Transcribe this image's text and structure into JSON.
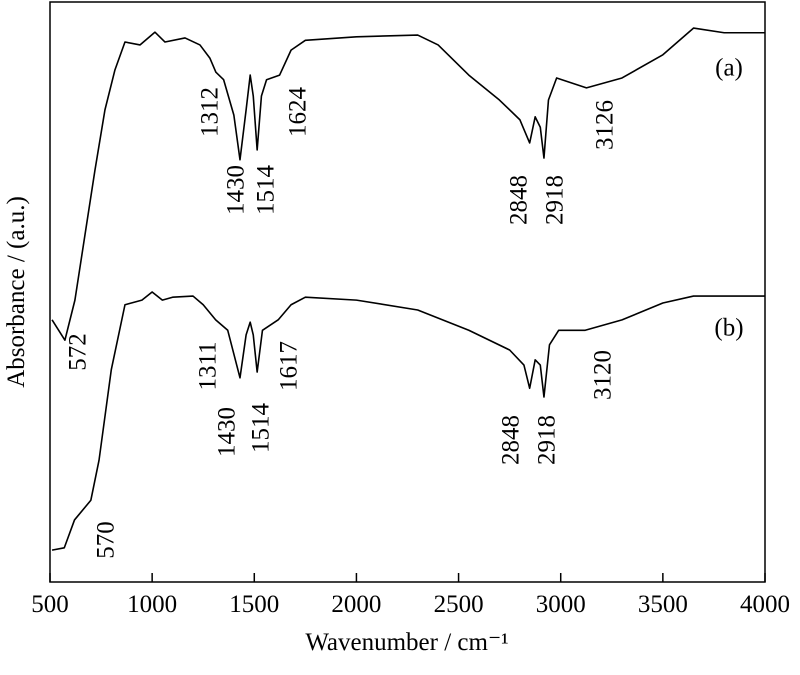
{
  "chart_data": {
    "type": "line",
    "x_label": "Wavenumber / cm⁻¹",
    "y_label": "Absorbance / (a.u.)",
    "xlim": [
      500,
      4000
    ],
    "xticks": [
      500,
      1000,
      1500,
      2000,
      2500,
      3000,
      3500,
      4000
    ],
    "ylim": [
      0,
      100
    ],
    "color": "#000000",
    "series": [
      {
        "name": "(a)",
        "x": [
          510,
          573,
          622,
          671,
          720,
          769,
          818,
          867,
          941,
          1014,
          1063,
          1161,
          1234,
          1283,
          1312,
          1350,
          1400,
          1430,
          1460,
          1480,
          1495,
          1514,
          1535,
          1560,
          1624,
          1680,
          1750,
          2000,
          2300,
          2400,
          2550,
          2700,
          2800,
          2848,
          2875,
          2900,
          2918,
          2940,
          2980,
          3126,
          3300,
          3500,
          3650,
          3800,
          4000
        ],
        "values": [
          45.2,
          41.7,
          48.6,
          59.8,
          71.0,
          81.4,
          88.3,
          93.1,
          92.6,
          94.8,
          93.1,
          93.8,
          92.6,
          90.3,
          87.9,
          86.6,
          80.5,
          72.8,
          81.4,
          87.4,
          83.8,
          74.5,
          83.8,
          86.6,
          87.4,
          91.7,
          93.4,
          94.0,
          94.3,
          92.6,
          87.4,
          83.1,
          79.7,
          75.7,
          80.2,
          78.4,
          73.1,
          83.1,
          86.9,
          85.2,
          86.9,
          90.9,
          95.5,
          94.7,
          94.7
        ],
        "peak_labels": [
          "572",
          "1312",
          "1430",
          "1514",
          "1624",
          "2848",
          "2918",
          "3126"
        ]
      },
      {
        "name": "(b)",
        "x": [
          510,
          570,
          620,
          700,
          740,
          800,
          867,
          950,
          1000,
          1050,
          1100,
          1200,
          1250,
          1311,
          1370,
          1430,
          1460,
          1480,
          1495,
          1514,
          1540,
          1617,
          1680,
          1750,
          2000,
          2300,
          2550,
          2750,
          2820,
          2848,
          2875,
          2900,
          2918,
          2945,
          2990,
          3120,
          3300,
          3500,
          3650,
          4000
        ],
        "values": [
          5.5,
          5.9,
          10.7,
          14.1,
          21.0,
          36.6,
          47.8,
          48.6,
          50.0,
          48.6,
          49.1,
          49.3,
          47.8,
          45.2,
          43.4,
          35.2,
          42.6,
          44.8,
          42.6,
          36.2,
          43.4,
          45.2,
          47.8,
          49.1,
          48.6,
          46.9,
          43.4,
          40.0,
          37.4,
          33.4,
          38.3,
          37.4,
          31.9,
          40.9,
          43.4,
          43.4,
          45.2,
          48.1,
          49.3,
          49.3
        ],
        "peak_labels": [
          "570",
          "1311",
          "1430",
          "1514",
          "1617",
          "2848",
          "2918",
          "3120"
        ]
      }
    ]
  }
}
